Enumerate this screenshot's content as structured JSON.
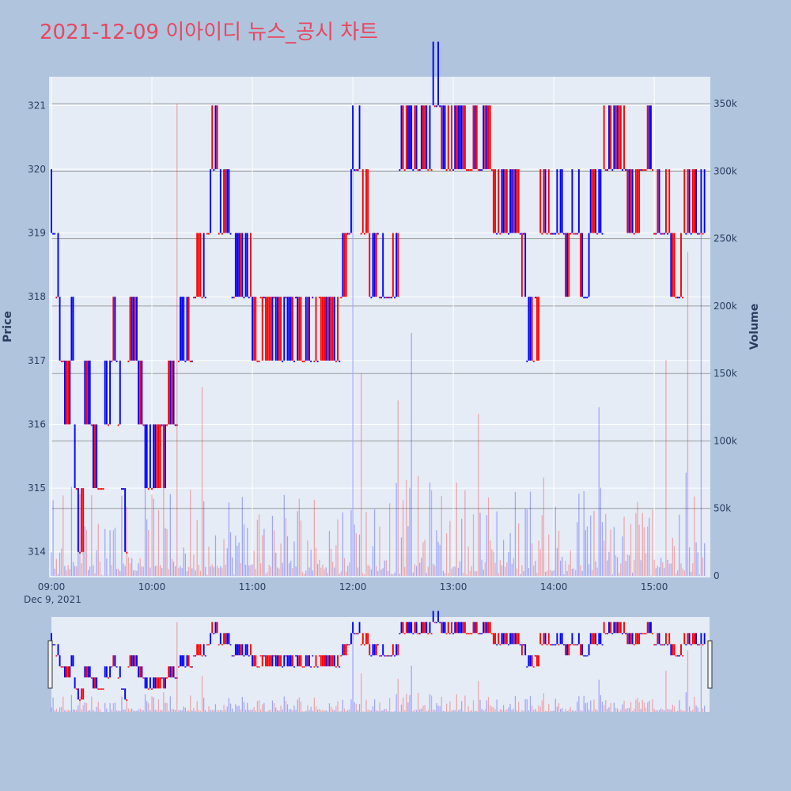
{
  "colors": {
    "background": "#b0c4de",
    "plot_background": "#e5ecf6",
    "title": "#e8475f",
    "up": "#ff0000",
    "down": "#0000ff",
    "grid": "#ffffff",
    "volume_grid": "#888888"
  },
  "chart_data": {
    "type": "candlestick-with-volume",
    "title": "2021-12-09 이아이디 뉴스_공시 차트",
    "ylabel": "Price",
    "y2label": "Volume",
    "x_start": "09:00",
    "x_end": "15:30",
    "x_ticks": [
      "09:00",
      "10:00",
      "11:00",
      "12:00",
      "13:00",
      "14:00",
      "15:00"
    ],
    "x_date_label": "Dec 9, 2021",
    "ylim": [
      313.6,
      321.45
    ],
    "y_ticks": [
      314,
      315,
      316,
      317,
      318,
      319,
      320,
      321
    ],
    "y2lim": [
      0,
      370000
    ],
    "y2_ticks": [
      0,
      50000,
      100000,
      150000,
      200000,
      250000,
      300000,
      350000
    ],
    "y2_tick_labels": [
      "0",
      "50k",
      "100k",
      "150k",
      "200k",
      "250k",
      "300k",
      "350k"
    ],
    "price_levels": [
      [
        "09:00",
        319
      ],
      [
        "09:03",
        318
      ],
      [
        "09:05",
        317
      ],
      [
        "09:08",
        316
      ],
      [
        "09:12",
        317
      ],
      [
        "09:14",
        315
      ],
      [
        "09:16",
        314
      ],
      [
        "09:20",
        316
      ],
      [
        "09:25",
        315
      ],
      [
        "09:32",
        316
      ],
      [
        "09:36",
        317
      ],
      [
        "09:40",
        316
      ],
      [
        "09:42",
        315
      ],
      [
        "09:44",
        314
      ],
      [
        "09:46",
        317
      ],
      [
        "09:52",
        316
      ],
      [
        "09:56",
        315.5
      ],
      [
        "10:10",
        316
      ],
      [
        "10:16",
        317
      ],
      [
        "10:25",
        318
      ],
      [
        "10:33",
        319
      ],
      [
        "10:36",
        320
      ],
      [
        "10:40",
        319
      ],
      [
        "10:48",
        318
      ],
      [
        "11:00",
        317.5
      ],
      [
        "11:30",
        317.5
      ],
      [
        "11:40",
        317.5
      ],
      [
        "11:53",
        318
      ],
      [
        "11:57",
        319
      ],
      [
        "12:00",
        320
      ],
      [
        "12:05",
        319
      ],
      [
        "12:10",
        318.5
      ],
      [
        "12:20",
        318
      ],
      [
        "12:28",
        320
      ],
      [
        "12:40",
        320
      ],
      [
        "12:48",
        321
      ],
      [
        "12:53",
        320
      ],
      [
        "13:10",
        320
      ],
      [
        "13:24",
        319
      ],
      [
        "13:40",
        318.5
      ],
      [
        "13:44",
        317.5
      ],
      [
        "13:52",
        319
      ],
      [
        "14:06",
        318.5
      ],
      [
        "14:10",
        319
      ],
      [
        "14:16",
        318
      ],
      [
        "14:22",
        319
      ],
      [
        "14:30",
        320
      ],
      [
        "14:44",
        319
      ],
      [
        "14:52",
        320
      ],
      [
        "15:00",
        319
      ],
      [
        "15:10",
        318
      ],
      [
        "15:18",
        319
      ]
    ],
    "volume_spikes": [
      [
        "10:15",
        350000
      ],
      [
        "12:00",
        320000
      ],
      [
        "12:05",
        150000
      ],
      [
        "12:35",
        180000
      ],
      [
        "15:20",
        240000
      ],
      [
        "15:28",
        260000
      ],
      [
        "10:30",
        140000
      ],
      [
        "12:27",
        130000
      ],
      [
        "15:07",
        160000
      ],
      [
        "14:27",
        125000
      ],
      [
        "13:15",
        120000
      ]
    ]
  }
}
